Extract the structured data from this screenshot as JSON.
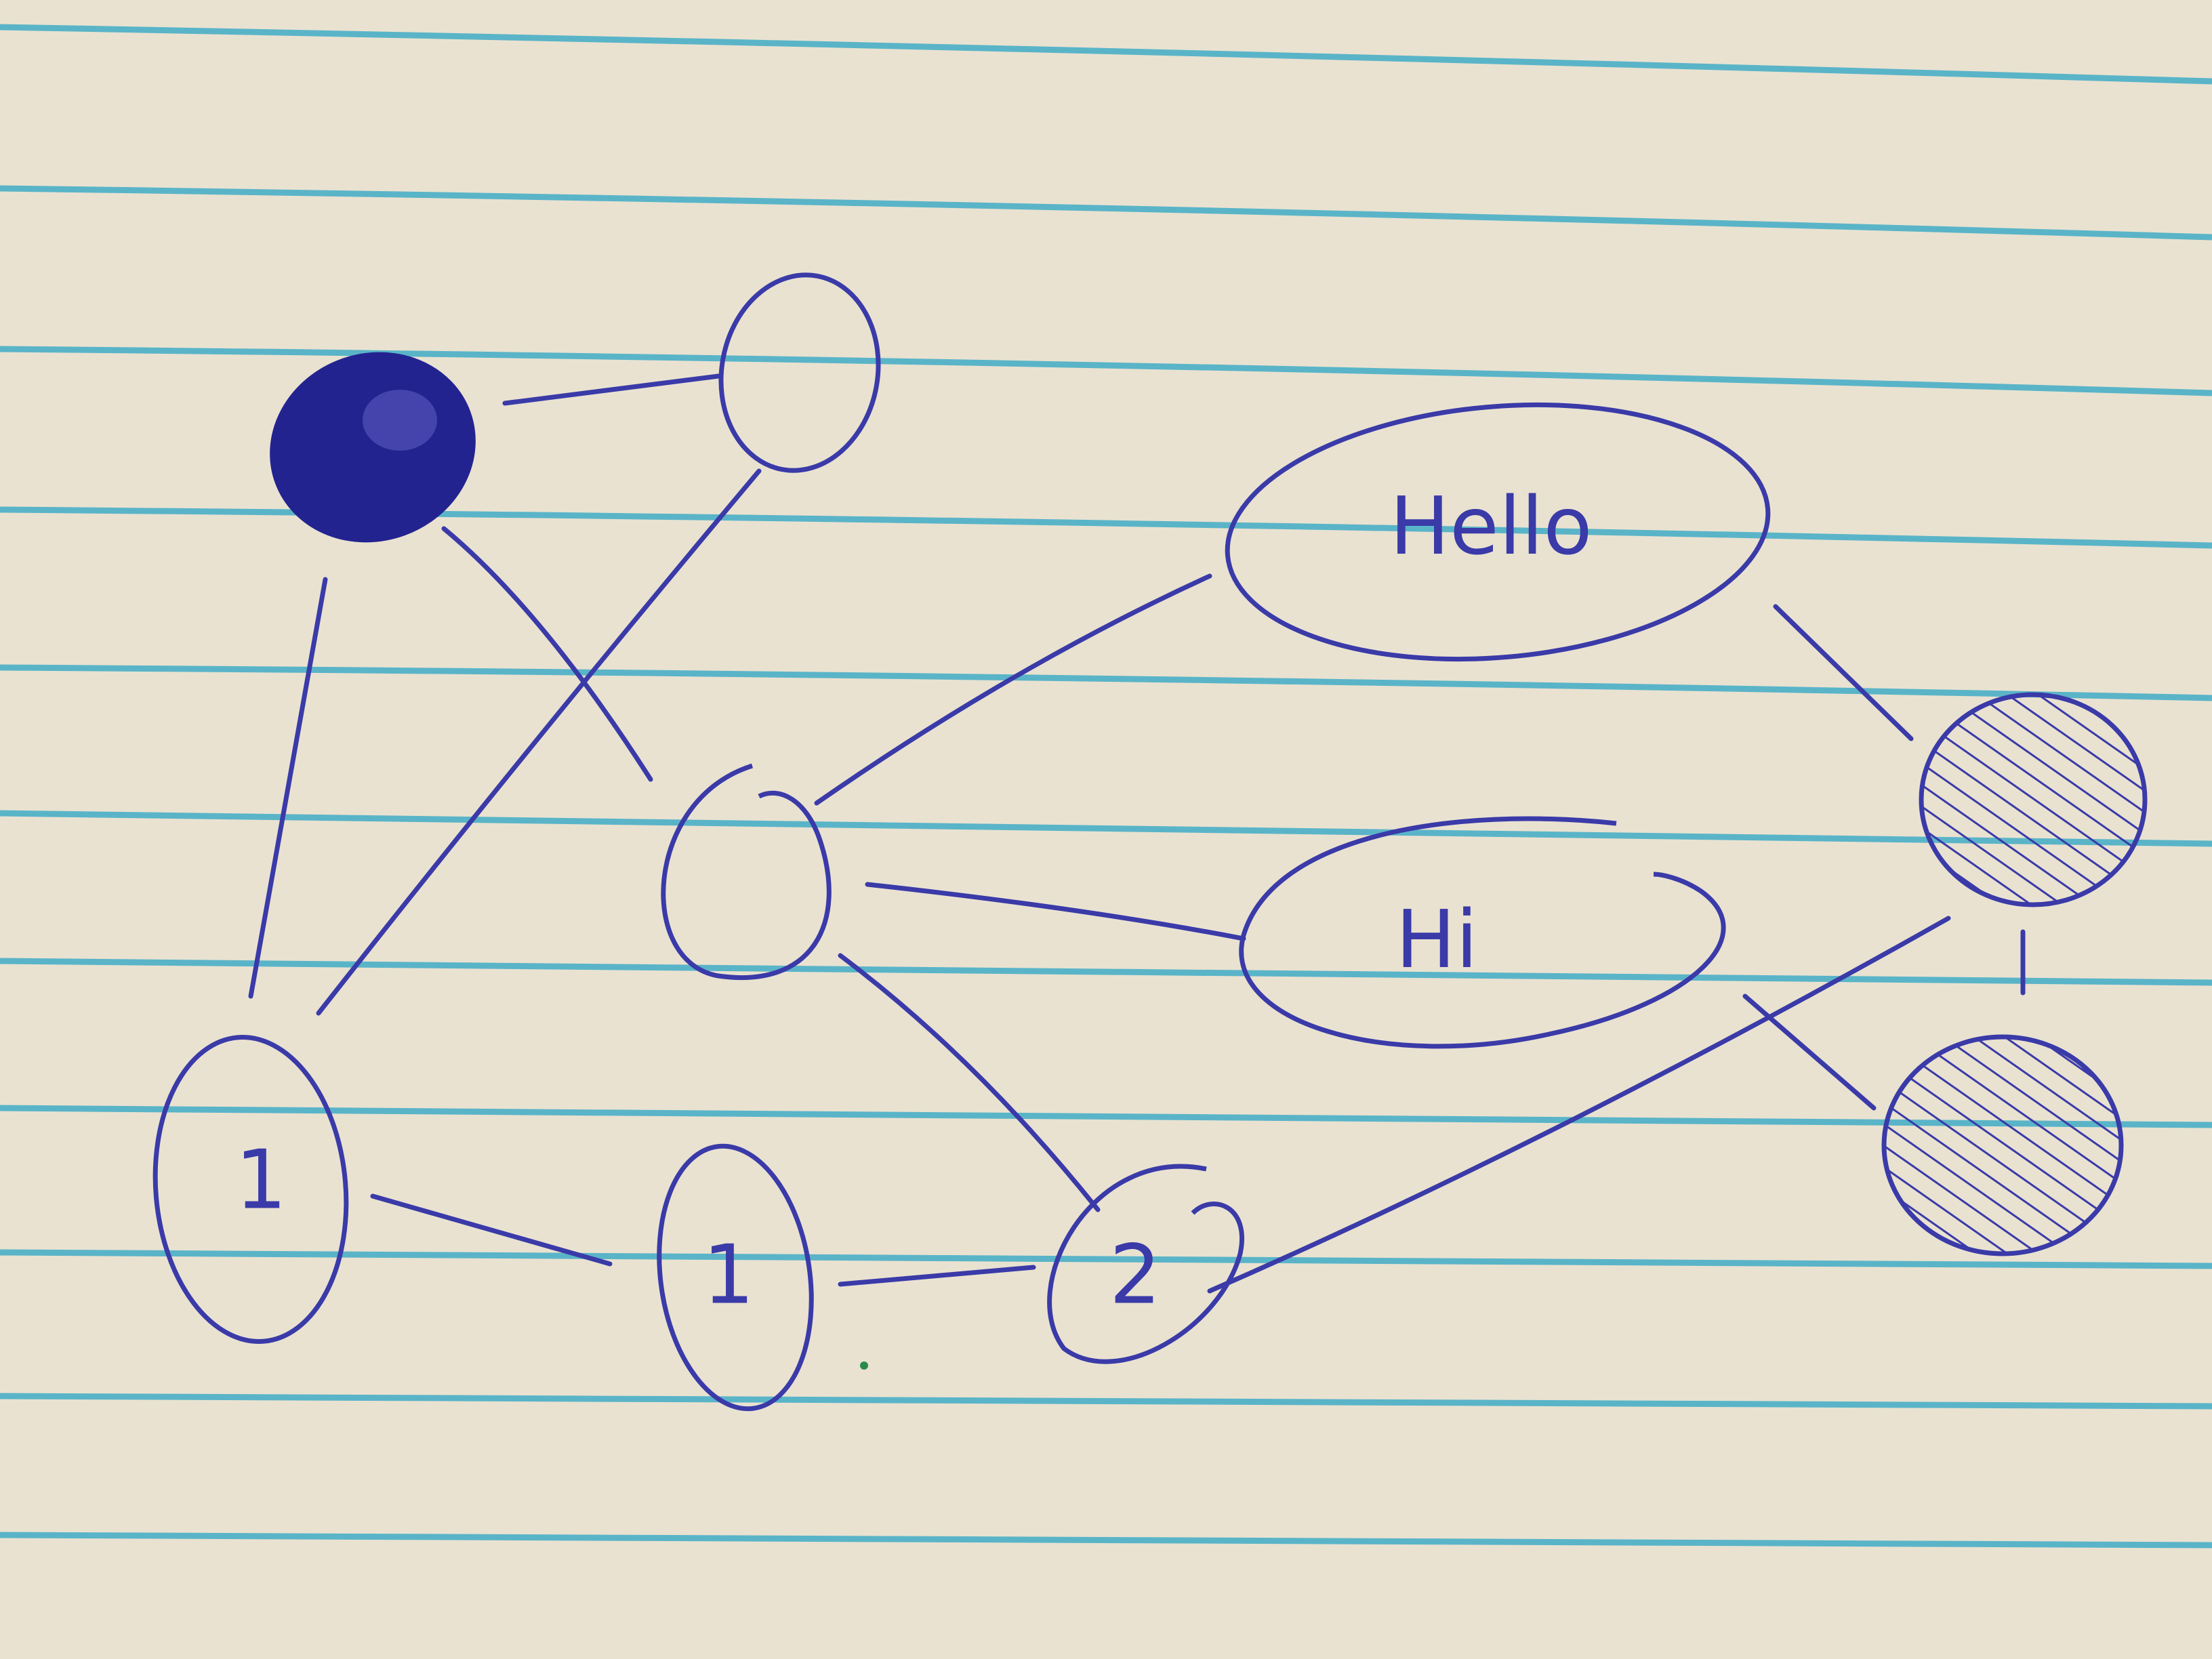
{
  "colors": {
    "paper": "#efe8d8",
    "rule": "#5ab4c8",
    "ink": "#3a3aa8",
    "ink_dark": "#232390"
  },
  "nodes": [
    {
      "id": "filled-top-left",
      "label": "",
      "fill": "solid"
    },
    {
      "id": "top-middle",
      "label": "",
      "fill": "none"
    },
    {
      "id": "center",
      "label": "",
      "fill": "none"
    },
    {
      "id": "hello",
      "label": "Hello",
      "fill": "none"
    },
    {
      "id": "hi",
      "label": "Hi",
      "fill": "none"
    },
    {
      "id": "hatched-right-top",
      "label": "",
      "fill": "hatched"
    },
    {
      "id": "hatched-right-bottom",
      "label": "",
      "fill": "hatched"
    },
    {
      "id": "bottom-left",
      "label": "1",
      "fill": "none"
    },
    {
      "id": "bottom-middle",
      "label": "1",
      "fill": "none"
    },
    {
      "id": "bottom-two",
      "label": "2",
      "fill": "none"
    }
  ],
  "edges": [
    {
      "from": "filled-top-left",
      "to": "top-middle"
    },
    {
      "from": "filled-top-left",
      "to": "center"
    },
    {
      "from": "filled-top-left",
      "to": "bottom-left"
    },
    {
      "from": "top-middle",
      "to": "bottom-left"
    },
    {
      "from": "center",
      "to": "hello"
    },
    {
      "from": "center",
      "to": "hi"
    },
    {
      "from": "center",
      "to": "bottom-two"
    },
    {
      "from": "hello",
      "to": "hatched-right-top"
    },
    {
      "from": "hi",
      "to": "hatched-right-bottom"
    },
    {
      "from": "hatched-right-top",
      "to": "hatched-right-bottom"
    },
    {
      "from": "hatched-right-top",
      "to": "bottom-two"
    },
    {
      "from": "bottom-left",
      "to": "bottom-middle"
    },
    {
      "from": "bottom-middle",
      "to": "bottom-two"
    }
  ]
}
